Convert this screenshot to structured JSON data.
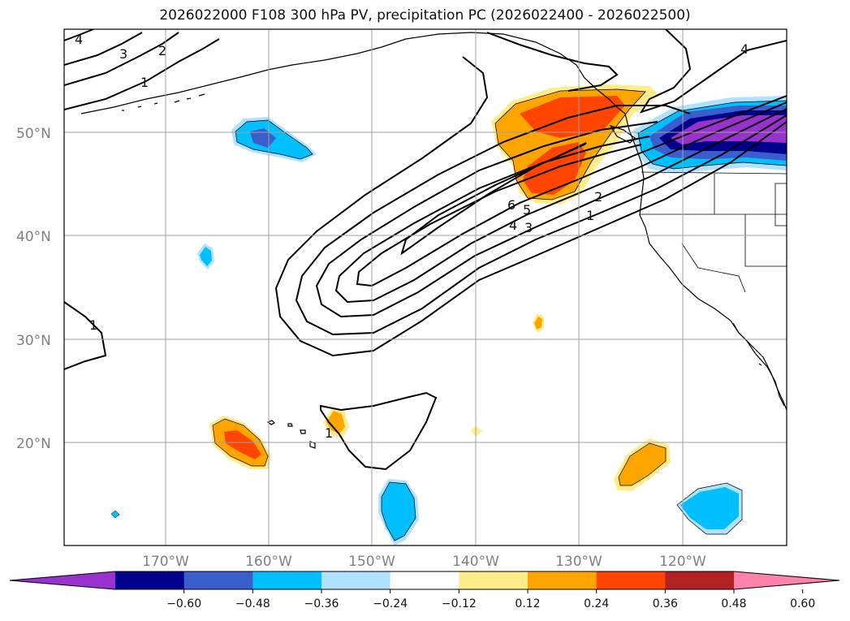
{
  "title": "2026022000 F108 300 hPa PV, precipitation PC (2026022400 - 2026022500)",
  "map": {
    "lat_labels": [
      "50°N",
      "40°N",
      "30°N",
      "20°N"
    ],
    "lon_labels": [
      "170°W",
      "160°W",
      "150°W",
      "140°W",
      "130°W",
      "120°W"
    ],
    "contour_labels": [
      "4",
      "3",
      "2",
      "1",
      "6",
      "5",
      "4",
      "3",
      "2",
      "1",
      "1",
      "1",
      "4"
    ]
  },
  "colorbar": {
    "ticks": [
      "−0.60",
      "−0.48",
      "−0.36",
      "−0.24",
      "−0.12",
      "0.12",
      "0.24",
      "0.36",
      "0.48",
      "0.60"
    ],
    "colors": [
      "#9932cc",
      "#00008b",
      "#3a5fcd",
      "#00bfff",
      "#b0e2ff",
      "#ffffff",
      "#ffec8b",
      "#ffa500",
      "#ff4500",
      "#b22222",
      "#ff82ab"
    ]
  }
}
